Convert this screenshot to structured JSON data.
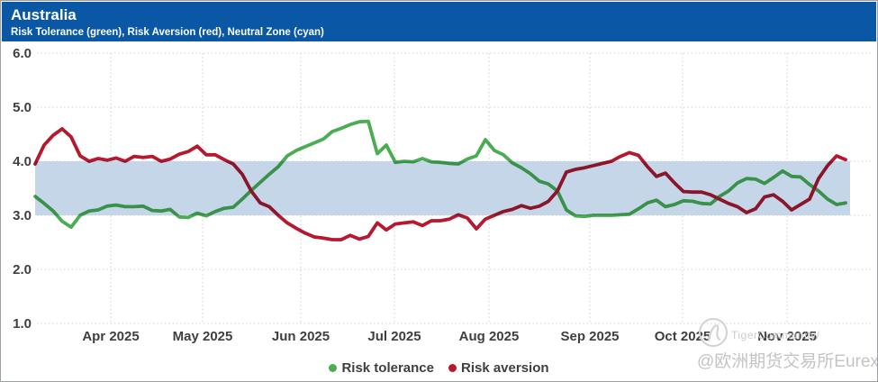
{
  "header": {
    "title": "Australia",
    "subtitle": "Risk Tolerance (green), Risk Aversion (red), Neutral Zone (cyan)"
  },
  "legend": [
    {
      "label": "Risk tolerance",
      "color": "#4aad52"
    },
    {
      "label": "Risk aversion",
      "color": "#b5182f"
    }
  ],
  "watermark": {
    "community": "TigerCommunity/",
    "handle": "@欧洲期货交易所Eurex"
  },
  "colors": {
    "header_bg": "#0a58a5",
    "band": "#c4d6e7",
    "grid": "#d9d9d9",
    "axis_text": "#3f3f3f",
    "green": "#4aad52",
    "red": "#b5182f"
  },
  "chart_data": {
    "type": "line",
    "title": "Australia",
    "subtitle": "Risk Tolerance (green), Risk Aversion (red), Neutral Zone (cyan)",
    "ylim": [
      1.0,
      6.0
    ],
    "y_ticks": [
      "6.0",
      "5.0",
      "4.0",
      "3.0",
      "2.0",
      "1.0"
    ],
    "x_ticks": [
      "Apr 2025",
      "May 2025",
      "Jun 2025",
      "Jul 2025",
      "Aug 2025",
      "Sep 2025",
      "Oct 2025",
      "Nov 2025"
    ],
    "x_start_approx": "early Mar 2025",
    "x_end_approx": "mid Nov 2025",
    "points_evenly_spaced": true,
    "grid": "dotted horizontal lines at each 1.0 step and dotted vertical lines at each month tick",
    "legend_position": "bottom center",
    "neutral_zone": {
      "from": 3.0,
      "to": 4.0,
      "color": "#c4d6e7",
      "label": "Neutral Zone (cyan)"
    },
    "series": [
      {
        "name": "Risk tolerance",
        "color": "#4aad52",
        "values": [
          3.35,
          3.22,
          3.08,
          2.89,
          2.78,
          3.0,
          3.08,
          3.1,
          3.17,
          3.19,
          3.16,
          3.16,
          3.17,
          3.09,
          3.08,
          3.11,
          2.97,
          2.96,
          3.04,
          2.99,
          3.07,
          3.13,
          3.15,
          3.3,
          3.46,
          3.61,
          3.76,
          3.9,
          4.1,
          4.2,
          4.27,
          4.34,
          4.41,
          4.55,
          4.61,
          4.68,
          4.73,
          4.74,
          4.14,
          4.3,
          3.98,
          4.0,
          3.99,
          4.05,
          3.99,
          3.98,
          3.96,
          3.95,
          4.04,
          4.1,
          4.4,
          4.2,
          4.12,
          3.97,
          3.88,
          3.77,
          3.63,
          3.58,
          3.45,
          3.1,
          2.99,
          2.98,
          3.0,
          3.0,
          3.0,
          3.01,
          3.02,
          3.12,
          3.23,
          3.28,
          3.16,
          3.2,
          3.27,
          3.26,
          3.22,
          3.21,
          3.35,
          3.45,
          3.6,
          3.68,
          3.67,
          3.59,
          3.7,
          3.82,
          3.72,
          3.71,
          3.57,
          3.45,
          3.3,
          3.2,
          3.23
        ]
      },
      {
        "name": "Risk aversion",
        "color": "#b5182f",
        "values": [
          3.95,
          4.3,
          4.48,
          4.6,
          4.45,
          4.1,
          4.0,
          4.05,
          4.02,
          4.06,
          4.0,
          4.09,
          4.07,
          4.09,
          4.0,
          4.04,
          4.13,
          4.18,
          4.28,
          4.12,
          4.12,
          4.03,
          3.95,
          3.76,
          3.45,
          3.23,
          3.16,
          3.0,
          2.86,
          2.76,
          2.67,
          2.6,
          2.58,
          2.55,
          2.55,
          2.63,
          2.56,
          2.61,
          2.86,
          2.73,
          2.84,
          2.86,
          2.88,
          2.81,
          2.9,
          2.9,
          2.93,
          3.01,
          2.95,
          2.75,
          2.93,
          3.0,
          3.07,
          3.11,
          3.18,
          3.13,
          3.17,
          3.26,
          3.45,
          3.8,
          3.85,
          3.88,
          3.92,
          3.96,
          4.0,
          4.09,
          4.16,
          4.11,
          3.9,
          3.72,
          3.78,
          3.6,
          3.44,
          3.43,
          3.43,
          3.38,
          3.3,
          3.22,
          3.16,
          3.05,
          3.12,
          3.34,
          3.38,
          3.26,
          3.1,
          3.2,
          3.3,
          3.68,
          3.92,
          4.1,
          4.03
        ]
      }
    ]
  }
}
